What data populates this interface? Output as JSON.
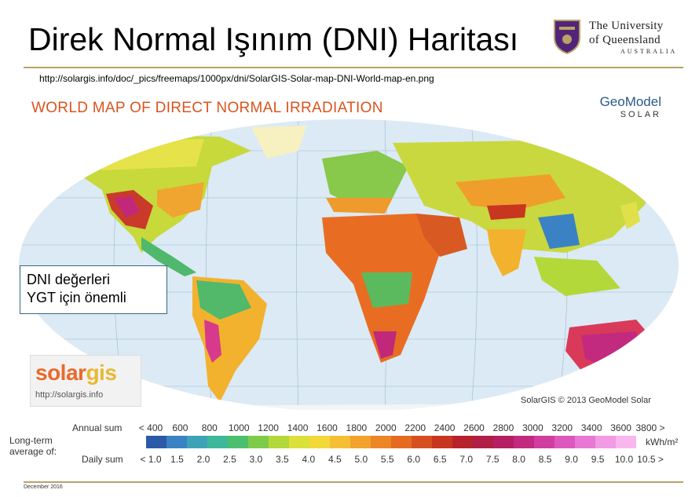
{
  "slide": {
    "title": "Direk Normal Işınım (DNI) Haritası",
    "source_url": "http://solargis.info/doc/_pics/freemaps/1000px/dni/SolarGIS-Solar-map-DNI-World-map-en.png",
    "date": "December 2016"
  },
  "uq_logo": {
    "line1": "The University",
    "line2": "of Queensland",
    "line3": "AUSTRALIA",
    "icon": "uq-crest-icon"
  },
  "map": {
    "heading": "WORLD MAP OF DIRECT NORMAL IRRADIATION",
    "brand": {
      "name": "GeoModel",
      "sub": "SOLAR"
    },
    "copyright": "SolarGIS © 2013 GeoModel Solar",
    "solargis_logo": {
      "part1": "solar",
      "part2": "gis",
      "url": "http://solargis.info"
    },
    "ocean_color": "#dbeaf5",
    "grid_color": "#9fb8c8"
  },
  "callout": {
    "line1": "DNI değerleri",
    "line2": "YGT için önemli"
  },
  "legend": {
    "long_term": "Long-term",
    "average_of": "average of:",
    "annual_label": "Annual sum",
    "daily_label": "Daily sum",
    "unit": "kWh/m²",
    "annual_ticks": [
      "< 400",
      "600",
      "800",
      "1000",
      "1200",
      "1400",
      "1600",
      "1800",
      "2000",
      "2200",
      "2400",
      "2600",
      "2800",
      "3000",
      "3200",
      "3400",
      "3600",
      "3800 >"
    ],
    "daily_ticks": [
      "< 1.0",
      "1.5",
      "2.0",
      "2.5",
      "3.0",
      "3.5",
      "4.0",
      "4.5",
      "5.0",
      "5.5",
      "6.0",
      "6.5",
      "7.0",
      "7.5",
      "8.0",
      "8.5",
      "9.0",
      "9.5",
      "10.0",
      "10.5 >"
    ],
    "colors": [
      "#2a5aa8",
      "#3b82c4",
      "#3fa3b8",
      "#3db89a",
      "#4cbf6e",
      "#7ccc4a",
      "#b3d83a",
      "#dbe03a",
      "#f3d83a",
      "#f6bf33",
      "#f2a22c",
      "#ec8626",
      "#e56b22",
      "#d84f1f",
      "#c9361f",
      "#b7222b",
      "#b01e45",
      "#b51e62",
      "#c22a80",
      "#d03ea0",
      "#dc58bc",
      "#e878d4",
      "#f29ae4",
      "#f8b8ee"
    ]
  }
}
